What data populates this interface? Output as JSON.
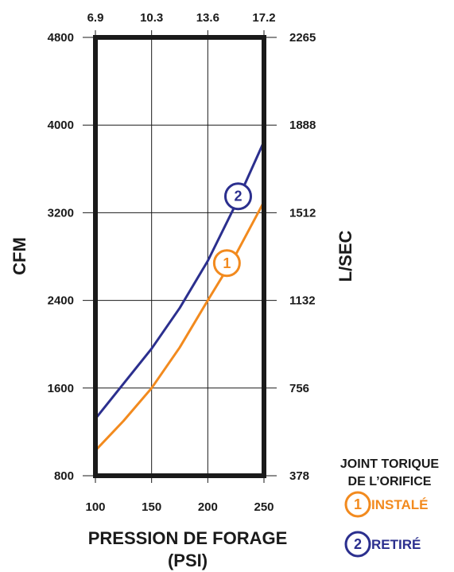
{
  "chart_data": {
    "type": "line",
    "xlabel": "PRESSION DE FORAGE",
    "xlabel_unit": "(PSI)",
    "ylabel": "CFM",
    "y2label": "L/SEC",
    "x_ticks": [
      "100",
      "150",
      "200",
      "250"
    ],
    "x_top_ticks": [
      "6.9",
      "10.3",
      "13.6",
      "17.2"
    ],
    "y_ticks": [
      "800",
      "1600",
      "2400",
      "3200",
      "4000",
      "4800"
    ],
    "y2_ticks": [
      "378",
      "756",
      "1132",
      "1512",
      "1888",
      "2265"
    ],
    "xlim": [
      100,
      250
    ],
    "ylim": [
      800,
      4800
    ],
    "grid": true,
    "legend": {
      "title_line1": "JOINT TORIQUE",
      "title_line2": "DE L’ORIFICE",
      "entries": [
        {
          "number": "1",
          "label": "INSTALÉ",
          "color": "#f28a1e"
        },
        {
          "number": "2",
          "label": "RETIRÉ",
          "color": "#2b2f8e"
        }
      ]
    },
    "series": [
      {
        "marker": "1",
        "color": "#f28a1e",
        "marker_at": [
          217,
          2740
        ],
        "x": [
          100,
          125,
          150,
          175,
          200,
          225,
          250
        ],
        "y": [
          1030,
          1300,
          1600,
          1970,
          2400,
          2820,
          3300
        ]
      },
      {
        "marker": "2",
        "color": "#2b2f8e",
        "marker_at": [
          227,
          3350
        ],
        "x": [
          100,
          125,
          150,
          175,
          200,
          225,
          250
        ],
        "y": [
          1320,
          1640,
          1960,
          2330,
          2760,
          3280,
          3850
        ]
      }
    ]
  }
}
